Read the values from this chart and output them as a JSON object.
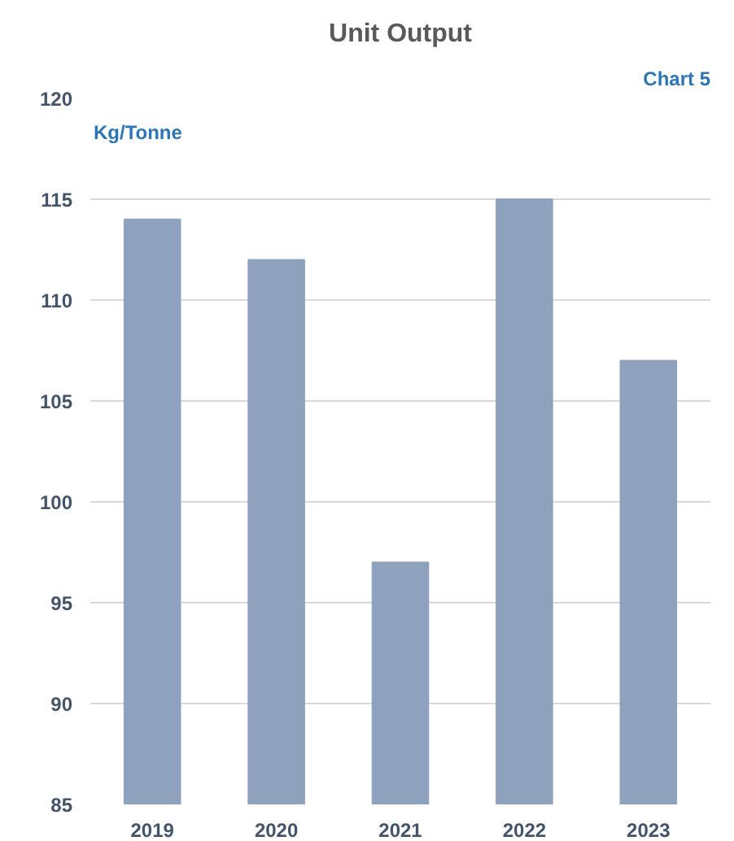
{
  "chart_data": {
    "type": "bar",
    "title": "Unit Output",
    "ylabel": "Kg/Tonne",
    "annotations": [
      "Chart 5"
    ],
    "categories": [
      "2019",
      "2020",
      "2021",
      "2022",
      "2023"
    ],
    "values": [
      114,
      112,
      97,
      115,
      107
    ],
    "color": "#8fa2bd",
    "ylim": [
      85,
      120
    ],
    "yticks": [
      85,
      90,
      95,
      100,
      105,
      110,
      115,
      120
    ],
    "grid": "y"
  }
}
